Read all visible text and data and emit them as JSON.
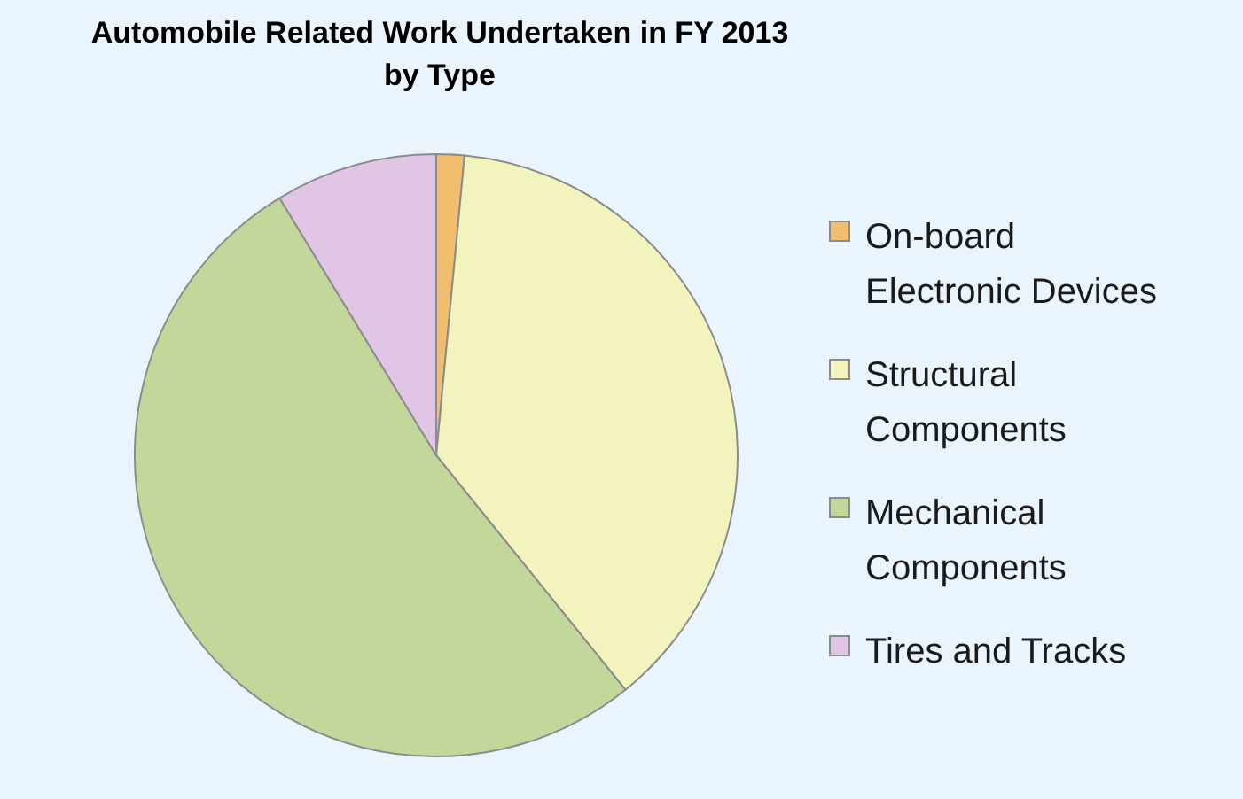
{
  "chart_data": {
    "type": "pie",
    "title": "Automobile Related Work Undertaken in FY 2013 by Type",
    "categories": [
      "On-board Electronic Devices",
      "Structural Components",
      "Mechanical Components",
      "Tires and Tracks"
    ],
    "values": [
      1.5,
      37.7,
      52.1,
      8.7
    ],
    "colors": [
      "#f0be6c",
      "#f3f3be",
      "#c4d79b",
      "#e0c6e4"
    ],
    "legend": "right"
  }
}
